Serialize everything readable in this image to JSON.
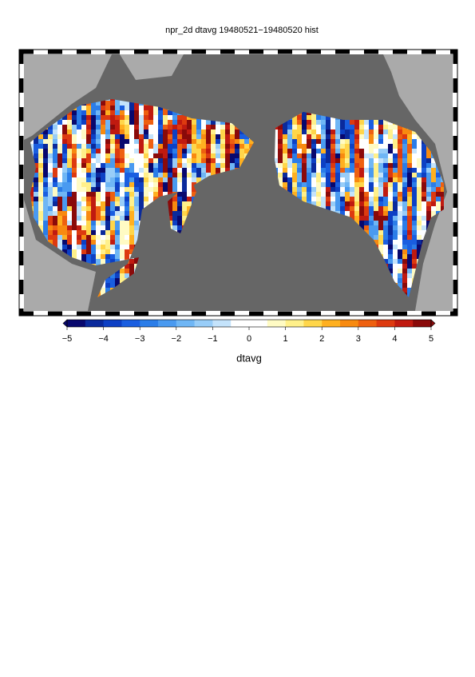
{
  "title": "npr_2d dtavg 19480521−19480520 hist",
  "colorbar": {
    "label": "dtavg",
    "lim": [
      -5,
      5
    ],
    "ticks": [
      {
        "value": -5,
        "label": "−5"
      },
      {
        "value": -4,
        "label": "−4"
      },
      {
        "value": -3,
        "label": "−3"
      },
      {
        "value": -2,
        "label": "−2"
      },
      {
        "value": -1,
        "label": "−1"
      },
      0,
      1,
      2,
      3,
      4,
      5
    ],
    "colors": [
      "#08086e",
      "#0a2a9c",
      "#0d40c4",
      "#1a5ee0",
      "#2b7de8",
      "#4a9af0",
      "#6fb6f5",
      "#98cdf8",
      "#c4e3fb",
      "#ffffff",
      "#ffffff",
      "#fffbc4",
      "#fff08a",
      "#ffd64a",
      "#ffb020",
      "#f88a10",
      "#ee6010",
      "#dd3a10",
      "#c01a10",
      "#8a0a0a"
    ]
  }
}
